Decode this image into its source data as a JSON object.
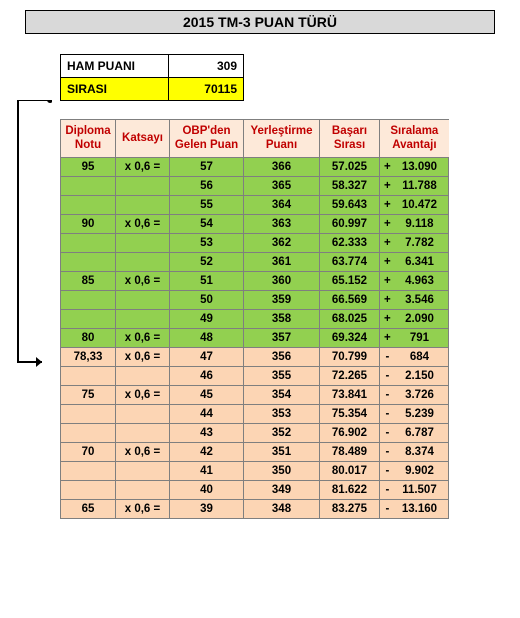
{
  "title": "2015 TM-3 PUAN TÜRÜ",
  "summary": {
    "ham_label": "HAM PUANI",
    "ham_value": "309",
    "sira_label": "SIRASI",
    "sira_value": "70115"
  },
  "headers": {
    "diploma": "Diploma Notu",
    "katsayi": "Katsayı",
    "obp": "OBP'den Gelen Puan",
    "yerlestirme": "Yerleştirme Puanı",
    "basari": "Başarı Sırası",
    "siralama": "Sıralama Avantajı"
  },
  "rows": [
    {
      "dip": "95",
      "kat": "x 0,6 =",
      "obp": "57",
      "yer": "366",
      "bas": "57.025",
      "sig": "+",
      "adv": "13.090",
      "cls": "green"
    },
    {
      "dip": "",
      "kat": "",
      "obp": "56",
      "yer": "365",
      "bas": "58.327",
      "sig": "+",
      "adv": "11.788",
      "cls": "green"
    },
    {
      "dip": "",
      "kat": "",
      "obp": "55",
      "yer": "364",
      "bas": "59.643",
      "sig": "+",
      "adv": "10.472",
      "cls": "green"
    },
    {
      "dip": "90",
      "kat": "x 0,6 =",
      "obp": "54",
      "yer": "363",
      "bas": "60.997",
      "sig": "+",
      "adv": "9.118",
      "cls": "green"
    },
    {
      "dip": "",
      "kat": "",
      "obp": "53",
      "yer": "362",
      "bas": "62.333",
      "sig": "+",
      "adv": "7.782",
      "cls": "green"
    },
    {
      "dip": "",
      "kat": "",
      "obp": "52",
      "yer": "361",
      "bas": "63.774",
      "sig": "+",
      "adv": "6.341",
      "cls": "green"
    },
    {
      "dip": "85",
      "kat": "x 0,6 =",
      "obp": "51",
      "yer": "360",
      "bas": "65.152",
      "sig": "+",
      "adv": "4.963",
      "cls": "green"
    },
    {
      "dip": "",
      "kat": "",
      "obp": "50",
      "yer": "359",
      "bas": "66.569",
      "sig": "+",
      "adv": "3.546",
      "cls": "green"
    },
    {
      "dip": "",
      "kat": "",
      "obp": "49",
      "yer": "358",
      "bas": "68.025",
      "sig": "+",
      "adv": "2.090",
      "cls": "green"
    },
    {
      "dip": "80",
      "kat": "x 0,6 =",
      "obp": "48",
      "yer": "357",
      "bas": "69.324",
      "sig": "+",
      "adv": "791",
      "cls": "green",
      "bold": true
    },
    {
      "dip": "78,33",
      "kat": "x 0,6 =",
      "obp": "47",
      "yer": "356",
      "bas": "70.799",
      "sig": "-",
      "adv": "684",
      "cls": "orange",
      "bold": true
    },
    {
      "dip": "",
      "kat": "",
      "obp": "46",
      "yer": "355",
      "bas": "72.265",
      "sig": "-",
      "adv": "2.150",
      "cls": "orange"
    },
    {
      "dip": "75",
      "kat": "x 0,6 =",
      "obp": "45",
      "yer": "354",
      "bas": "73.841",
      "sig": "-",
      "adv": "3.726",
      "cls": "orange"
    },
    {
      "dip": "",
      "kat": "",
      "obp": "44",
      "yer": "353",
      "bas": "75.354",
      "sig": "-",
      "adv": "5.239",
      "cls": "orange"
    },
    {
      "dip": "",
      "kat": "",
      "obp": "43",
      "yer": "352",
      "bas": "76.902",
      "sig": "-",
      "adv": "6.787",
      "cls": "orange"
    },
    {
      "dip": "70",
      "kat": "x 0,6 =",
      "obp": "42",
      "yer": "351",
      "bas": "78.489",
      "sig": "-",
      "adv": "8.374",
      "cls": "orange"
    },
    {
      "dip": "",
      "kat": "",
      "obp": "41",
      "yer": "350",
      "bas": "80.017",
      "sig": "-",
      "adv": "9.902",
      "cls": "orange"
    },
    {
      "dip": "",
      "kat": "",
      "obp": "40",
      "yer": "349",
      "bas": "81.622",
      "sig": "-",
      "adv": "11.507",
      "cls": "orange"
    },
    {
      "dip": "65",
      "kat": "x 0,6 =",
      "obp": "39",
      "yer": "348",
      "bas": "83.275",
      "sig": "-",
      "adv": "13.160",
      "cls": "orange"
    }
  ]
}
